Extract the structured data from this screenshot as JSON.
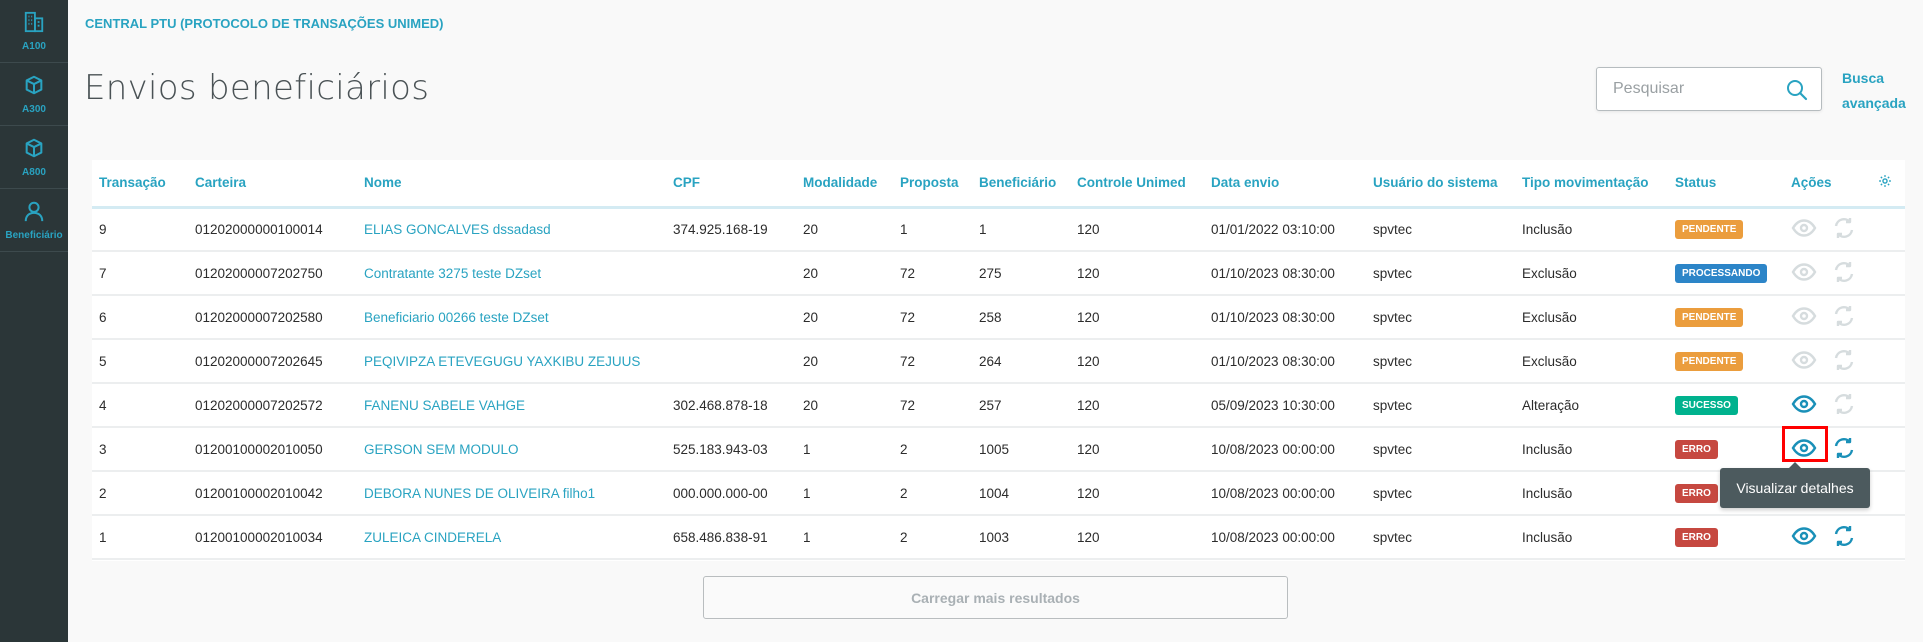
{
  "sidebar": {
    "items": [
      {
        "label": "A100",
        "icon": "building-icon"
      },
      {
        "label": "A300",
        "icon": "cube-icon"
      },
      {
        "label": "A800",
        "icon": "cube-icon"
      },
      {
        "label": "Beneficiário",
        "icon": "user-icon"
      }
    ]
  },
  "header": {
    "breadcrumb": "CENTRAL PTU (PROTOCOLO DE TRANSAÇÕES UNIMED)",
    "title": "Envios beneficiários"
  },
  "search": {
    "placeholder": "Pesquisar",
    "value": "",
    "advanced_line1": "Busca",
    "advanced_line2": "avançada"
  },
  "colors": {
    "accent": "#29a3c1",
    "pendente": "#eb9d3d",
    "processando": "#2c85c8",
    "sucesso": "#00b28e",
    "erro": "#c64840",
    "sidebar": "#2b3638"
  },
  "table": {
    "columns": [
      "Transação",
      "Carteira",
      "Nome",
      "CPF",
      "Modalidade",
      "Proposta",
      "Beneficiário",
      "Controle Unimed",
      "Data envio",
      "Usuário do sistema",
      "Tipo movimentação",
      "Status",
      "Ações"
    ],
    "rows": [
      {
        "transacao": "9",
        "carteira": "01202000000100014",
        "nome": "ELIAS GONCALVES dssadasd",
        "cpf": "374.925.168-19",
        "modalidade": "20",
        "proposta": "1",
        "beneficiario": "1",
        "controle": "120",
        "data": "01/01/2022 03:10:00",
        "usuario": "spvtec",
        "tipo": "Inclusão",
        "status": "PENDENTE",
        "status_key": "pendente",
        "view_enabled": false,
        "resend_enabled": false
      },
      {
        "transacao": "7",
        "carteira": "01202000007202750",
        "nome": "Contratante 3275 teste DZset",
        "cpf": "",
        "modalidade": "20",
        "proposta": "72",
        "beneficiario": "275",
        "controle": "120",
        "data": "01/10/2023 08:30:00",
        "usuario": "spvtec",
        "tipo": "Exclusão",
        "status": "PROCESSANDO",
        "status_key": "processando",
        "view_enabled": false,
        "resend_enabled": false
      },
      {
        "transacao": "6",
        "carteira": "01202000007202580",
        "nome": "Beneficiario 00266 teste DZset",
        "cpf": "",
        "modalidade": "20",
        "proposta": "72",
        "beneficiario": "258",
        "controle": "120",
        "data": "01/10/2023 08:30:00",
        "usuario": "spvtec",
        "tipo": "Exclusão",
        "status": "PENDENTE",
        "status_key": "pendente",
        "view_enabled": false,
        "resend_enabled": false
      },
      {
        "transacao": "5",
        "carteira": "01202000007202645",
        "nome": "PEQIVIPZA ETEVEGUGU YAXKIBU ZEJUUS",
        "cpf": "",
        "modalidade": "20",
        "proposta": "72",
        "beneficiario": "264",
        "controle": "120",
        "data": "01/10/2023 08:30:00",
        "usuario": "spvtec",
        "tipo": "Exclusão",
        "status": "PENDENTE",
        "status_key": "pendente",
        "view_enabled": false,
        "resend_enabled": false
      },
      {
        "transacao": "4",
        "carteira": "01202000007202572",
        "nome": "FANENU SABELE VAHGE",
        "cpf": "302.468.878-18",
        "modalidade": "20",
        "proposta": "72",
        "beneficiario": "257",
        "controle": "120",
        "data": "05/09/2023 10:30:00",
        "usuario": "spvtec",
        "tipo": "Alteração",
        "status": "SUCESSO",
        "status_key": "sucesso",
        "view_enabled": true,
        "resend_enabled": false
      },
      {
        "transacao": "3",
        "carteira": "01200100002010050",
        "nome": "GERSON SEM MODULO",
        "cpf": "525.183.943-03",
        "modalidade": "1",
        "proposta": "2",
        "beneficiario": "1005",
        "controle": "120",
        "data": "10/08/2023 00:00:00",
        "usuario": "spvtec",
        "tipo": "Inclusão",
        "status": "ERRO",
        "status_key": "erro",
        "view_enabled": true,
        "resend_enabled": true,
        "highlighted": true
      },
      {
        "transacao": "2",
        "carteira": "01200100002010042",
        "nome": "DEBORA NUNES DE OLIVEIRA filho1",
        "cpf": "000.000.000-00",
        "modalidade": "1",
        "proposta": "2",
        "beneficiario": "1004",
        "controle": "120",
        "data": "10/08/2023 00:00:00",
        "usuario": "spvtec",
        "tipo": "Inclusão",
        "status": "ERRO",
        "status_key": "erro",
        "view_enabled": true,
        "resend_enabled": true
      },
      {
        "transacao": "1",
        "carteira": "01200100002010034",
        "nome": "ZULEICA CINDERELA",
        "cpf": "658.486.838-91",
        "modalidade": "1",
        "proposta": "2",
        "beneficiario": "1003",
        "controle": "120",
        "data": "10/08/2023 00:00:00",
        "usuario": "spvtec",
        "tipo": "Inclusão",
        "status": "ERRO",
        "status_key": "erro",
        "view_enabled": true,
        "resend_enabled": true
      }
    ]
  },
  "tooltip": "Visualizar detalhes",
  "load_more": "Carregar mais resultados"
}
